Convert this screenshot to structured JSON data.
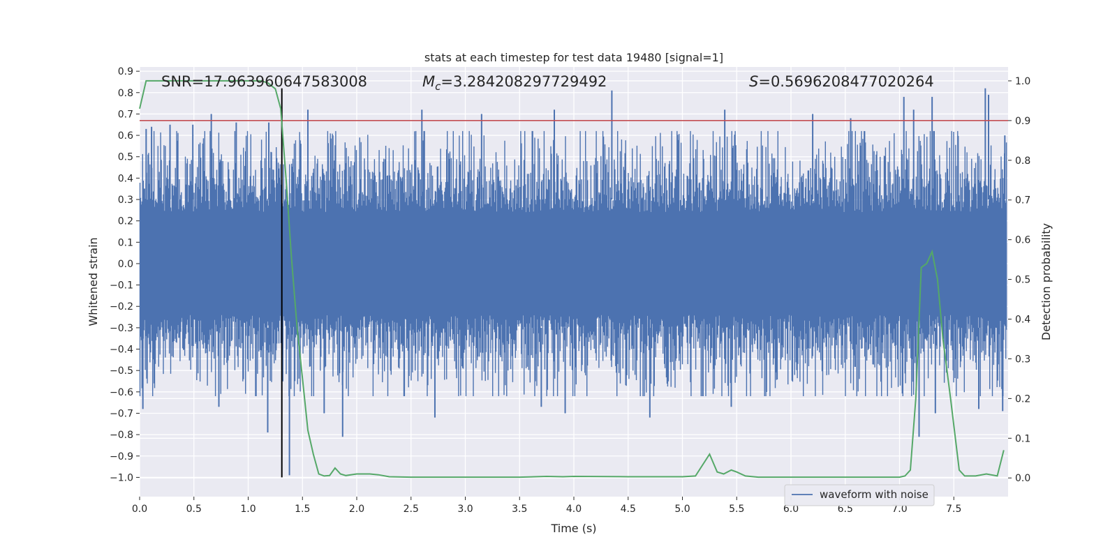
{
  "chart_data": {
    "type": "line",
    "title": "stats at each timestep for test data 19480 [signal=1]",
    "xlabel": "Time (s)",
    "ylabel_left": "Whitened strain",
    "ylabel_right": "Detection probability",
    "xlim": [
      0.0,
      8.0
    ],
    "ylim_left": [
      -1.09,
      0.92
    ],
    "ylim_right": [
      -0.047,
      1.035
    ],
    "x_ticks": [
      "0.0",
      "0.5",
      "1.0",
      "1.5",
      "2.0",
      "2.5",
      "3.0",
      "3.5",
      "4.0",
      "4.5",
      "5.0",
      "5.5",
      "6.0",
      "6.5",
      "7.0",
      "7.5"
    ],
    "x_tick_values": [
      0.0,
      0.5,
      1.0,
      1.5,
      2.0,
      2.5,
      3.0,
      3.5,
      4.0,
      4.5,
      5.0,
      5.5,
      6.0,
      6.5,
      7.0,
      7.5
    ],
    "y_left_ticks": [
      "0.9",
      "0.8",
      "0.7",
      "0.6",
      "0.5",
      "0.4",
      "0.3",
      "0.2",
      "0.1",
      "0.0",
      "−0.1",
      "−0.2",
      "−0.3",
      "−0.4",
      "−0.5",
      "−0.6",
      "−0.7",
      "−0.8",
      "−0.9",
      "−1.0"
    ],
    "y_left_tick_values": [
      0.9,
      0.8,
      0.7,
      0.6,
      0.5,
      0.4,
      0.3,
      0.2,
      0.1,
      0.0,
      -0.1,
      -0.2,
      -0.3,
      -0.4,
      -0.5,
      -0.6,
      -0.7,
      -0.8,
      -0.9,
      -1.0
    ],
    "y_right_ticks": [
      "1.0",
      "0.9",
      "0.8",
      "0.7",
      "0.6",
      "0.5",
      "0.4",
      "0.3",
      "0.2",
      "0.1",
      "0.0"
    ],
    "y_right_tick_values": [
      1.0,
      0.9,
      0.8,
      0.7,
      0.6,
      0.5,
      0.4,
      0.3,
      0.2,
      0.1,
      0.0
    ],
    "grid": true,
    "legend_position": "lower-right",
    "annotations": [
      {
        "label": "SNR",
        "value": "=17.963960647583008"
      },
      {
        "label": "M",
        "subscript": "c",
        "value": "=3.284208297729492"
      },
      {
        "label": "S",
        "value": "=0.5696208477020264"
      }
    ],
    "threshold": {
      "axis": "right",
      "y": 0.9,
      "color": "#c44e52"
    },
    "event_marker": {
      "x": 1.31,
      "y_left": [
        -1.0,
        0.82
      ],
      "color": "#000000"
    },
    "series": [
      {
        "name": "waveform with noise",
        "axis": "left",
        "color": "#4c72b0",
        "style": "noise",
        "sample_rate_hz": 2048,
        "envelope_rms": 0.2,
        "peaks": [
          {
            "x": 0.03,
            "y": -0.68
          },
          {
            "x": 0.06,
            "y": 0.63
          },
          {
            "x": 0.11,
            "y": 0.64
          },
          {
            "x": 0.28,
            "y": 0.65
          },
          {
            "x": 0.49,
            "y": 0.65
          },
          {
            "x": 0.66,
            "y": 0.7
          },
          {
            "x": 0.73,
            "y": -0.67
          },
          {
            "x": 0.89,
            "y": 0.66
          },
          {
            "x": 1.18,
            "y": -0.79
          },
          {
            "x": 1.19,
            "y": 0.66
          },
          {
            "x": 1.38,
            "y": -0.99
          },
          {
            "x": 1.55,
            "y": 0.72
          },
          {
            "x": 1.7,
            "y": -0.7
          },
          {
            "x": 1.87,
            "y": -0.81
          },
          {
            "x": 2.6,
            "y": 0.72
          },
          {
            "x": 2.72,
            "y": -0.72
          },
          {
            "x": 3.15,
            "y": 0.7
          },
          {
            "x": 3.7,
            "y": -0.67
          },
          {
            "x": 3.82,
            "y": 0.72
          },
          {
            "x": 3.92,
            "y": -0.7
          },
          {
            "x": 4.35,
            "y": 0.81
          },
          {
            "x": 4.7,
            "y": -0.72
          },
          {
            "x": 5.39,
            "y": 0.72
          },
          {
            "x": 5.45,
            "y": -0.67
          },
          {
            "x": 6.2,
            "y": 0.7
          },
          {
            "x": 6.55,
            "y": 0.68
          },
          {
            "x": 7.04,
            "y": 0.78
          },
          {
            "x": 7.13,
            "y": 0.72
          },
          {
            "x": 7.18,
            "y": -0.81
          },
          {
            "x": 7.3,
            "y": 0.78
          },
          {
            "x": 7.33,
            "y": -0.7
          },
          {
            "x": 7.73,
            "y": -0.68
          },
          {
            "x": 7.79,
            "y": 0.82
          },
          {
            "x": 7.82,
            "y": 0.79
          },
          {
            "x": 7.95,
            "y": -0.69
          },
          {
            "x": 7.97,
            "y": 0.6
          }
        ]
      },
      {
        "name": "Detection probability",
        "axis": "right",
        "color": "#55a868",
        "style": "line",
        "x": [
          0.0,
          0.06,
          0.12,
          0.2,
          0.5,
          0.8,
          1.05,
          1.12,
          1.18,
          1.25,
          1.3,
          1.35,
          1.4,
          1.45,
          1.5,
          1.55,
          1.6,
          1.65,
          1.7,
          1.75,
          1.8,
          1.85,
          1.9,
          2.0,
          2.12,
          2.2,
          2.3,
          2.5,
          3.0,
          3.5,
          3.75,
          3.9,
          4.0,
          4.5,
          4.7,
          5.0,
          5.12,
          5.25,
          5.32,
          5.38,
          5.45,
          5.5,
          5.58,
          5.7,
          6.0,
          6.5,
          7.0,
          7.05,
          7.1,
          7.15,
          7.2,
          7.25,
          7.3,
          7.35,
          7.4,
          7.47,
          7.55,
          7.6,
          7.7,
          7.8,
          7.9,
          7.96
        ],
        "y": [
          0.93,
          1.0,
          1.0,
          1.0,
          1.0,
          1.0,
          1.0,
          1.0,
          0.995,
          0.98,
          0.93,
          0.75,
          0.55,
          0.38,
          0.25,
          0.12,
          0.06,
          0.01,
          0.005,
          0.006,
          0.025,
          0.01,
          0.006,
          0.01,
          0.01,
          0.008,
          0.003,
          0.002,
          0.002,
          0.002,
          0.004,
          0.003,
          0.004,
          0.003,
          0.003,
          0.003,
          0.005,
          0.06,
          0.015,
          0.01,
          0.02,
          0.015,
          0.005,
          0.002,
          0.002,
          0.002,
          0.002,
          0.005,
          0.02,
          0.2,
          0.53,
          0.54,
          0.57,
          0.5,
          0.35,
          0.2,
          0.02,
          0.005,
          0.005,
          0.01,
          0.005,
          0.07
        ]
      }
    ]
  }
}
